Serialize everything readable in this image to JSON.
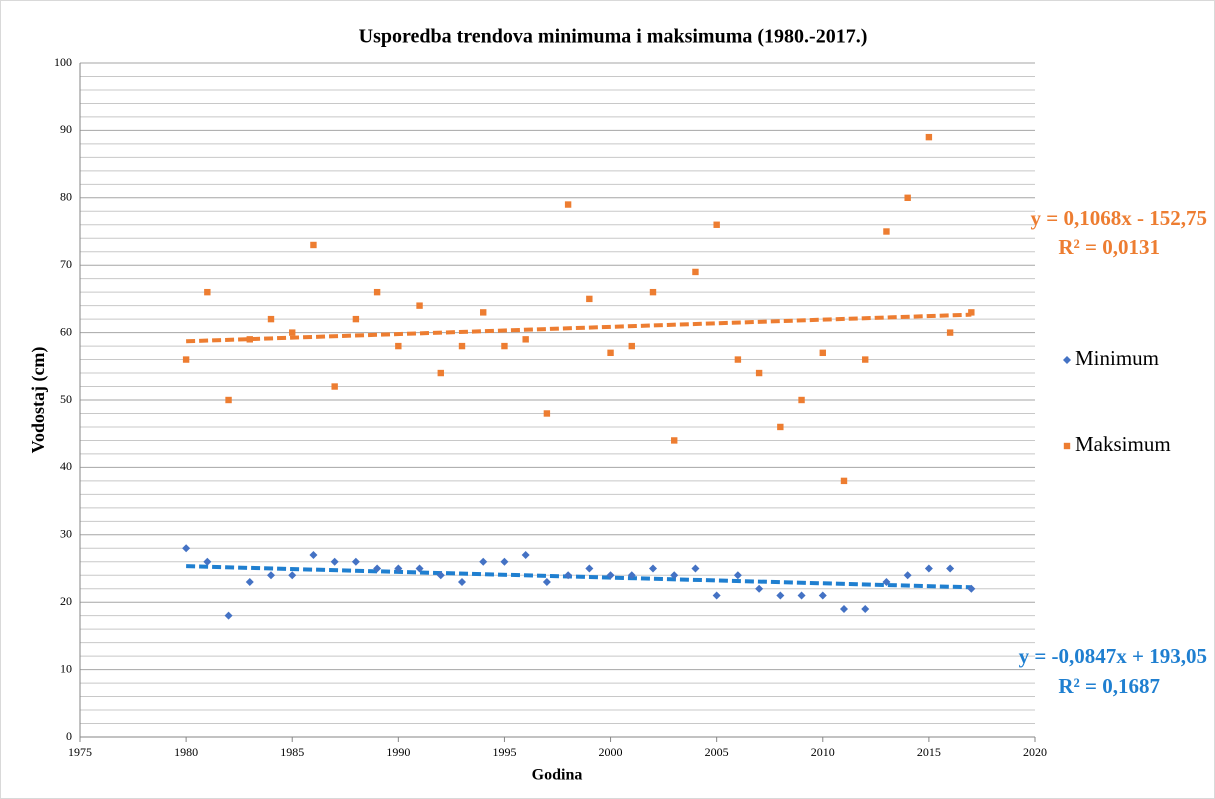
{
  "chart_data": {
    "type": "scatter",
    "title": "Usporedba trendova minimuma i maksimuma (1980.-2017.)",
    "xlabel": "Godina",
    "ylabel": "Vodostaj (cm)",
    "x": [
      1980,
      1981,
      1982,
      1983,
      1984,
      1985,
      1986,
      1987,
      1988,
      1989,
      1990,
      1991,
      1992,
      1993,
      1994,
      1995,
      1996,
      1997,
      1998,
      1999,
      2000,
      2001,
      2002,
      2003,
      2004,
      2005,
      2006,
      2007,
      2008,
      2009,
      2010,
      2011,
      2012,
      2013,
      2014,
      2015,
      2016,
      2017
    ],
    "series": [
      {
        "name": "Minimum",
        "color": "#4472c4",
        "marker": "diamond",
        "values": [
          28,
          26,
          18,
          23,
          24,
          24,
          27,
          26,
          26,
          25,
          25,
          25,
          24,
          23,
          26,
          26,
          27,
          23,
          24,
          25,
          24,
          24,
          25,
          24,
          25,
          21,
          24,
          22,
          21,
          21,
          21,
          19,
          19,
          23,
          24,
          25,
          25,
          22
        ],
        "trendline": {
          "color": "#1f7fd0",
          "slope": -0.0847,
          "intercept": 193.05,
          "equation": "y = -0,0847x + 193,05",
          "r2": "R² = 0,1687"
        }
      },
      {
        "name": "Maksimum",
        "color": "#ed7d31",
        "marker": "square",
        "values": [
          56,
          66,
          50,
          59,
          62,
          60,
          73,
          52,
          62,
          66,
          58,
          64,
          54,
          58,
          63,
          58,
          59,
          48,
          79,
          65,
          57,
          58,
          66,
          44,
          69,
          76,
          56,
          54,
          46,
          50,
          57,
          38,
          56,
          75,
          80,
          89,
          60,
          63
        ],
        "trendline": {
          "color": "#ed7d31",
          "slope": 0.1068,
          "intercept": -152.75,
          "equation": "y = 0,1068x - 152,75",
          "r2": "R² = 0,0131"
        }
      }
    ],
    "xlim": [
      1975,
      2020
    ],
    "xticks": [
      1975,
      1980,
      1985,
      1990,
      1995,
      2000,
      2005,
      2010,
      2015,
      2020
    ],
    "ylim": [
      0,
      100
    ],
    "yticks": [
      0,
      10,
      20,
      30,
      40,
      50,
      60,
      70,
      80,
      90,
      100
    ],
    "yminorticks": [
      2,
      4,
      6,
      8,
      12,
      14,
      16,
      18,
      22,
      24,
      26,
      28,
      32,
      34,
      36,
      38,
      42,
      44,
      46,
      48,
      52,
      54,
      56,
      58,
      62,
      64,
      66,
      68,
      72,
      74,
      76,
      78,
      82,
      84,
      86,
      88,
      92,
      94,
      96,
      98
    ],
    "grid": true,
    "legend": "right"
  }
}
